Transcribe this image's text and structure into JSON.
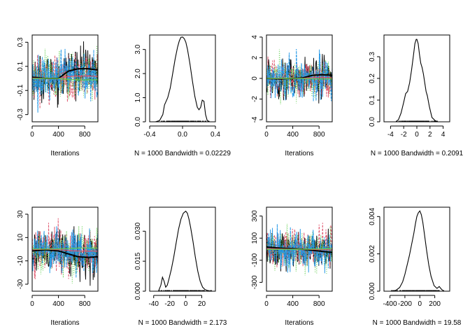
{
  "chart_data": [
    {
      "type": "line",
      "panel": "trace",
      "xlabel": "Iterations",
      "xlim": [
        0,
        1000
      ],
      "ylim": [
        -0.36,
        0.36
      ],
      "xticks": [
        0,
        400,
        800
      ],
      "yticks": [
        -0.3,
        -0.1,
        0.1,
        0.3
      ],
      "ytick_labels": [
        "-0.3",
        "-0.1",
        "0.1",
        "0.3"
      ],
      "center": 0.0,
      "spread": 0.1,
      "smooth_x": [
        0,
        200,
        400,
        550,
        700,
        850,
        1000
      ],
      "smooth_y": [
        0.01,
        0.0,
        0.0,
        0.06,
        0.08,
        0.08,
        0.07
      ],
      "series_colors": [
        "#000000",
        "#DF536B",
        "#61D04F",
        "#2297E6"
      ]
    },
    {
      "type": "line",
      "panel": "density",
      "xlabel": "N = 1000   Bandwidth = 0.02229",
      "xlim": [
        -0.4,
        0.4
      ],
      "ylim": [
        0,
        3.6
      ],
      "xticks": [
        -0.4,
        0.0,
        0.4
      ],
      "xtick_labels": [
        "-0.4",
        "0.0",
        "0.4"
      ],
      "yticks": [
        0.0,
        1.0,
        2.0,
        3.0
      ],
      "ytick_labels": [
        "0.0",
        "1.0",
        "2.0",
        "3.0"
      ],
      "x": [
        -0.33,
        -0.28,
        -0.24,
        -0.22,
        -0.2,
        -0.18,
        -0.15,
        -0.12,
        -0.09,
        -0.06,
        -0.04,
        -0.02,
        0.0,
        0.02,
        0.04,
        0.06,
        0.09,
        0.12,
        0.15,
        0.18,
        0.2,
        0.22,
        0.24,
        0.26,
        0.28,
        0.3,
        0.33
      ],
      "y": [
        0.0,
        0.05,
        0.3,
        0.7,
        0.85,
        1.0,
        1.4,
        2.0,
        2.6,
        3.1,
        3.35,
        3.5,
        3.52,
        3.45,
        3.3,
        3.0,
        2.4,
        1.7,
        1.05,
        0.6,
        0.5,
        0.6,
        0.9,
        0.85,
        0.3,
        0.05,
        0.0
      ],
      "rug": [
        -0.3,
        0.32
      ]
    },
    {
      "type": "line",
      "panel": "trace",
      "xlabel": "Iterations",
      "xlim": [
        0,
        1000
      ],
      "ylim": [
        -4.2,
        4.2
      ],
      "xticks": [
        0,
        400,
        800
      ],
      "yticks": [
        -4,
        -2,
        0,
        2,
        4
      ],
      "ytick_labels": [
        "-4",
        "-2",
        "0",
        "2",
        "4"
      ],
      "center": 0.0,
      "spread": 1.0,
      "smooth_x": [
        0,
        200,
        400,
        550,
        700,
        850,
        1000
      ],
      "smooth_y": [
        0.0,
        -0.05,
        0.0,
        0.05,
        0.3,
        0.35,
        0.3
      ],
      "series_colors": [
        "#000000",
        "#DF536B",
        "#61D04F",
        "#2297E6"
      ]
    },
    {
      "type": "line",
      "panel": "density",
      "xlabel": "N = 1000   Bandwidth = 0.2091",
      "xlim": [
        -5,
        5
      ],
      "ylim": [
        0,
        0.4
      ],
      "xticks": [
        -4,
        -2,
        0,
        2,
        4
      ],
      "xtick_labels": [
        "-4",
        "-2",
        "0",
        "2",
        "4"
      ],
      "yticks": [
        0.0,
        0.1,
        0.2,
        0.3
      ],
      "ytick_labels": [
        "0.0",
        "0.1",
        "0.2",
        "0.3"
      ],
      "x": [
        -3.2,
        -2.8,
        -2.4,
        -2.0,
        -1.7,
        -1.4,
        -1.1,
        -0.8,
        -0.5,
        -0.3,
        -0.1,
        0.0,
        0.2,
        0.4,
        0.6,
        0.8,
        1.0,
        1.2,
        1.4,
        1.6,
        1.9,
        2.3,
        2.8,
        3.2
      ],
      "y": [
        0.0,
        0.01,
        0.04,
        0.09,
        0.13,
        0.14,
        0.18,
        0.24,
        0.31,
        0.36,
        0.38,
        0.38,
        0.36,
        0.31,
        0.27,
        0.25,
        0.22,
        0.18,
        0.14,
        0.12,
        0.07,
        0.02,
        0.005,
        0.0
      ],
      "rug": [
        -3.1,
        3.1
      ]
    },
    {
      "type": "line",
      "panel": "trace",
      "xlabel": "Iterations",
      "xlim": [
        0,
        1000
      ],
      "ylim": [
        -36,
        36
      ],
      "xticks": [
        0,
        400,
        800
      ],
      "yticks": [
        -30,
        -10,
        10,
        30
      ],
      "ytick_labels": [
        "-30",
        "-10",
        "10",
        "30"
      ],
      "center": 0.0,
      "spread": 10,
      "smooth_x": [
        0,
        200,
        400,
        550,
        700,
        850,
        1000
      ],
      "smooth_y": [
        -1.5,
        -0.5,
        -1.5,
        -4.0,
        -6.5,
        -7.0,
        -6.5
      ],
      "series_colors": [
        "#000000",
        "#DF536B",
        "#61D04F",
        "#2297E6"
      ]
    },
    {
      "type": "line",
      "panel": "density",
      "xlabel": "N = 1000   Bandwidth = 2.173",
      "xlim": [
        -45,
        37
      ],
      "ylim": [
        0,
        0.042
      ],
      "xticks": [
        -40,
        -20,
        0,
        20
      ],
      "xtick_labels": [
        "-40",
        "-20",
        "0",
        "20"
      ],
      "yticks": [
        0.0,
        0.015,
        0.03
      ],
      "ytick_labels": [
        "0.000",
        "0.015",
        "0.030"
      ],
      "x": [
        -34,
        -31,
        -29,
        -27,
        -25,
        -23,
        -21,
        -18,
        -15,
        -12,
        -9,
        -6,
        -3,
        0,
        2,
        4,
        6,
        9,
        12,
        15,
        18,
        21,
        24,
        28,
        32
      ],
      "y": [
        0.0,
        0.003,
        0.007,
        0.005,
        0.002,
        0.003,
        0.006,
        0.011,
        0.017,
        0.024,
        0.031,
        0.036,
        0.039,
        0.04,
        0.039,
        0.036,
        0.032,
        0.025,
        0.017,
        0.01,
        0.005,
        0.002,
        0.0008,
        0.0002,
        0.0
      ],
      "rug": [
        -33,
        32
      ]
    },
    {
      "type": "line",
      "panel": "trace",
      "xlabel": "Iterations",
      "xlim": [
        0,
        1000
      ],
      "ylim": [
        -380,
        380
      ],
      "xticks": [
        0,
        400,
        800
      ],
      "yticks": [
        -300,
        -100,
        100,
        300
      ],
      "ytick_labels": [
        "-300",
        "-100",
        "100",
        "300"
      ],
      "center": 0.0,
      "spread": 95,
      "smooth_x": [
        0,
        200,
        400,
        550,
        700,
        850,
        1000
      ],
      "smooth_y": [
        20,
        10,
        5,
        0,
        -10,
        -20,
        -30
      ],
      "series_colors": [
        "#000000",
        "#DF536B",
        "#61D04F",
        "#2297E6"
      ]
    },
    {
      "type": "line",
      "panel": "density",
      "xlabel": "N = 1000   Bandwidth = 19.58",
      "xlim": [
        -480,
        400
      ],
      "ylim": [
        0,
        0.0045
      ],
      "xticks": [
        -400,
        -200,
        0,
        200
      ],
      "xtick_labels": [
        "-400",
        "-200",
        "0",
        "200"
      ],
      "yticks": [
        0.0,
        0.002,
        0.004
      ],
      "ytick_labels": [
        "0.000",
        "0.002",
        "0.004"
      ],
      "x": [
        -380,
        -320,
        -270,
        -230,
        -200,
        -170,
        -140,
        -110,
        -80,
        -60,
        -40,
        -20,
        0,
        20,
        40,
        60,
        90,
        120,
        150,
        190,
        230,
        260,
        290,
        320
      ],
      "y": [
        0.0,
        5e-05,
        0.0002,
        0.0005,
        0.0009,
        0.0014,
        0.0019,
        0.0025,
        0.0031,
        0.0036,
        0.004,
        0.0042,
        0.0043,
        0.0041,
        0.0037,
        0.0031,
        0.0022,
        0.0014,
        0.0008,
        0.0003,
        0.00015,
        0.00025,
        0.0001,
        0.0
      ]
    }
  ]
}
